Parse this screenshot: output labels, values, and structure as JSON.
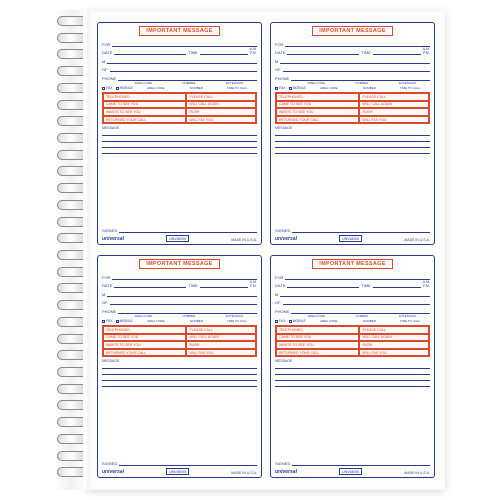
{
  "slip": {
    "header": "IMPORTANT MESSAGE",
    "fields": {
      "for": "FOR",
      "date": "DATE",
      "time": "TIME",
      "am": "A.M.",
      "pm": "P.M.",
      "m": "M",
      "of": "OF",
      "phone": "PHONE",
      "fax": "FAX",
      "mobile": "MOBILE",
      "area_code": "AREA CODE",
      "number": "NUMBER",
      "extension": "EXTENSION",
      "time_to_call": "TIME TO CALL",
      "message": "MESSAGE",
      "signed": "SIGNED"
    },
    "actions_left": [
      "TELEPHONED",
      "CAME TO SEE YOU",
      "WANTS TO SEE YOU",
      "RETURNED YOUR CALL"
    ],
    "actions_right": [
      "PLEASE CALL",
      "WILL CALL AGAIN",
      "RUSH",
      "WILL FAX YOU"
    ],
    "brand": "universal",
    "sku": "UNV48005",
    "made_in": "MADE IN U.S.A."
  },
  "colors": {
    "border": "#2a3a8f",
    "accent": "#d84a2b",
    "page": "#fdfdfb"
  },
  "spiral_rings": 28
}
